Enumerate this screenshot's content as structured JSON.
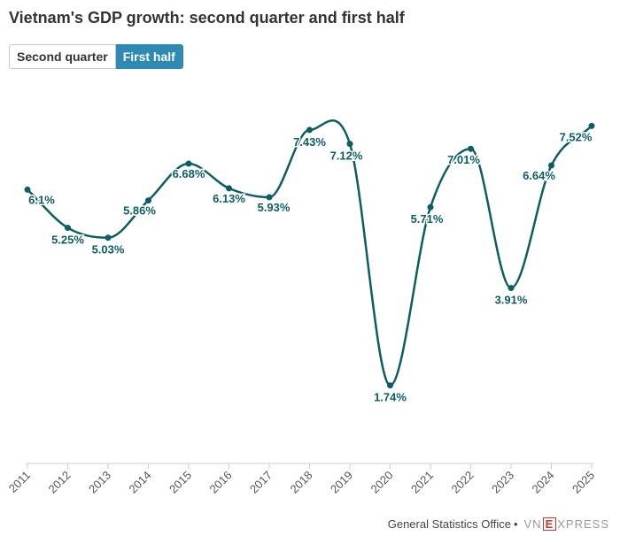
{
  "title": "Vietnam's GDP growth: second quarter and first half",
  "toggle": {
    "options": [
      "Second quarter",
      "First half"
    ],
    "active_index": 1
  },
  "colors": {
    "line": "#0d5e63",
    "label": "#0d5e63",
    "accent": "#2e8ab5",
    "axis": "#cccccc"
  },
  "footer": {
    "source": "General Statistics Office",
    "separator": "•",
    "logo_pre": "VN",
    "logo_box": "E",
    "logo_post": "XPRESS"
  },
  "chart_data": {
    "type": "line",
    "title": "Vietnam's GDP growth: second quarter and first half",
    "x": [
      "2011",
      "2012",
      "2013",
      "2014",
      "2015",
      "2016",
      "2017",
      "2018",
      "2019",
      "2020",
      "2021",
      "2022",
      "2023",
      "2024",
      "2025"
    ],
    "series": [
      {
        "name": "",
        "values": [
          6.1,
          5.25,
          5.03,
          5.86,
          6.68,
          6.13,
          5.93,
          7.43,
          7.12,
          1.74,
          5.71,
          7.01,
          3.91,
          6.64,
          7.52
        ],
        "labels": [
          "6.1%",
          "5.25%",
          "5.03%",
          "5.86%",
          "6.68%",
          "6.13%",
          "5.93%",
          "7.43%",
          "7.12%",
          "1.74%",
          "5.71%",
          "7.01%",
          "3.91%",
          "6.64%",
          "7.52%"
        ]
      }
    ],
    "xlabel": "",
    "ylabel": "",
    "ylim": [
      0,
      8
    ],
    "grid": false,
    "legend": "none"
  }
}
